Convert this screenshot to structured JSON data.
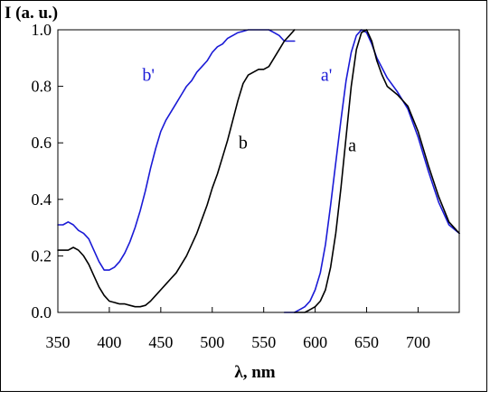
{
  "chart_data": {
    "type": "line",
    "ylabel": "I (a. u.)",
    "xlabel": "λ, nm",
    "xlim": [
      350,
      740
    ],
    "ylim": [
      0,
      1.0
    ],
    "x_ticks": [
      "350",
      "400",
      "450",
      "500",
      "550",
      "600",
      "650",
      "700"
    ],
    "y_ticks": [
      "0.0",
      "0.2",
      "0.4",
      "0.6",
      "0.8",
      "1.0"
    ],
    "grid": false,
    "colors": {
      "black": "#000000",
      "blue": "#1a1ad6"
    },
    "series": [
      {
        "name": "b'",
        "color": "#1a1ad6",
        "x": [
          350,
          355,
          360,
          365,
          370,
          375,
          380,
          385,
          390,
          395,
          400,
          405,
          410,
          415,
          420,
          425,
          430,
          435,
          440,
          445,
          450,
          455,
          460,
          465,
          470,
          475,
          480,
          485,
          490,
          495,
          500,
          505,
          510,
          515,
          520,
          525,
          530,
          535,
          540,
          545,
          550,
          555,
          560,
          565,
          570,
          575,
          580
        ],
        "y": [
          0.31,
          0.31,
          0.32,
          0.31,
          0.29,
          0.28,
          0.26,
          0.22,
          0.18,
          0.15,
          0.15,
          0.16,
          0.18,
          0.21,
          0.25,
          0.3,
          0.36,
          0.43,
          0.51,
          0.58,
          0.64,
          0.68,
          0.71,
          0.74,
          0.77,
          0.8,
          0.82,
          0.85,
          0.87,
          0.89,
          0.92,
          0.94,
          0.95,
          0.97,
          0.98,
          0.99,
          0.995,
          1.0,
          1.0,
          1.0,
          1.0,
          1.0,
          0.99,
          0.98,
          0.96,
          0.96,
          0.96
        ]
      },
      {
        "name": "b",
        "color": "#000000",
        "x": [
          350,
          355,
          360,
          365,
          370,
          375,
          380,
          385,
          390,
          395,
          400,
          405,
          410,
          415,
          420,
          425,
          430,
          435,
          440,
          445,
          450,
          455,
          460,
          465,
          470,
          475,
          480,
          485,
          490,
          495,
          500,
          505,
          510,
          515,
          520,
          525,
          530,
          535,
          540,
          545,
          550,
          555,
          560,
          565,
          570,
          575,
          580
        ],
        "y": [
          0.22,
          0.22,
          0.22,
          0.23,
          0.22,
          0.2,
          0.17,
          0.13,
          0.09,
          0.06,
          0.04,
          0.035,
          0.03,
          0.03,
          0.025,
          0.02,
          0.02,
          0.025,
          0.04,
          0.06,
          0.08,
          0.1,
          0.12,
          0.14,
          0.17,
          0.2,
          0.24,
          0.28,
          0.33,
          0.38,
          0.44,
          0.49,
          0.55,
          0.61,
          0.68,
          0.75,
          0.81,
          0.84,
          0.85,
          0.86,
          0.86,
          0.87,
          0.9,
          0.93,
          0.96,
          0.98,
          1.0
        ]
      },
      {
        "name": "a'",
        "color": "#1a1ad6",
        "x": [
          570,
          580,
          585,
          590,
          595,
          600,
          605,
          610,
          615,
          620,
          625,
          630,
          635,
          640,
          645,
          650,
          655,
          660,
          670,
          680,
          690,
          700,
          710,
          720,
          730,
          740
        ],
        "y": [
          0.0,
          0.0,
          0.01,
          0.02,
          0.04,
          0.08,
          0.14,
          0.24,
          0.38,
          0.53,
          0.68,
          0.82,
          0.92,
          0.98,
          1.0,
          0.99,
          0.95,
          0.9,
          0.83,
          0.78,
          0.72,
          0.62,
          0.5,
          0.39,
          0.31,
          0.28
        ]
      },
      {
        "name": "a",
        "color": "#000000",
        "x": [
          580,
          590,
          595,
          600,
          605,
          610,
          615,
          620,
          625,
          630,
          635,
          640,
          645,
          650,
          655,
          660,
          665,
          670,
          680,
          690,
          700,
          710,
          720,
          730,
          740
        ],
        "y": [
          0.0,
          0.0,
          0.01,
          0.02,
          0.04,
          0.08,
          0.16,
          0.28,
          0.44,
          0.62,
          0.8,
          0.93,
          0.99,
          1.0,
          0.96,
          0.89,
          0.84,
          0.8,
          0.77,
          0.73,
          0.64,
          0.52,
          0.41,
          0.32,
          0.28
        ]
      }
    ],
    "annotations": [
      {
        "text": "b'",
        "x": 438,
        "y": 0.82,
        "color": "#1a1ad6"
      },
      {
        "text": "b",
        "x": 530,
        "y": 0.58,
        "color": "#000000"
      },
      {
        "text": "a'",
        "x": 611,
        "y": 0.82,
        "color": "#1a1ad6"
      },
      {
        "text": "a",
        "x": 636,
        "y": 0.57,
        "color": "#000000"
      }
    ]
  }
}
